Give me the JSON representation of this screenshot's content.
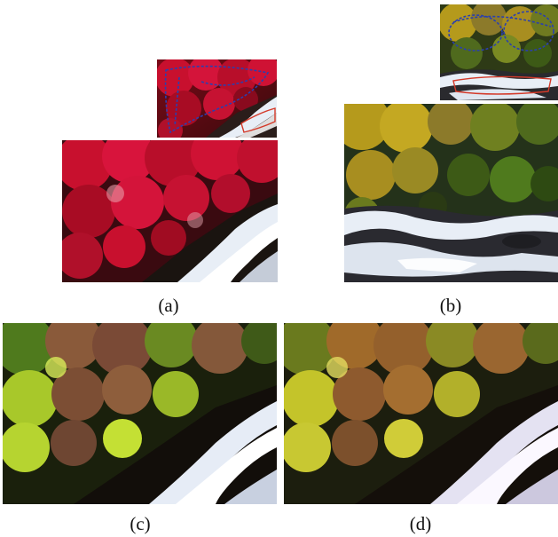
{
  "figure": {
    "panels": [
      {
        "id": "a",
        "label": "(a)"
      },
      {
        "id": "b",
        "label": "(b)"
      },
      {
        "id": "c",
        "label": "(c)"
      },
      {
        "id": "d",
        "label": "(d)"
      }
    ]
  },
  "colors": {
    "red_foliage": "#c8102e",
    "yellow_foliage": "#b59a1c",
    "green_foliage": "#4f7a1d",
    "olive_foliage": "#8c7a2a",
    "water": "#e8eef6",
    "scribble_blue": "#2a3fb0",
    "scribble_red": "#d43a2a",
    "dark_bank": "#1a1410"
  }
}
